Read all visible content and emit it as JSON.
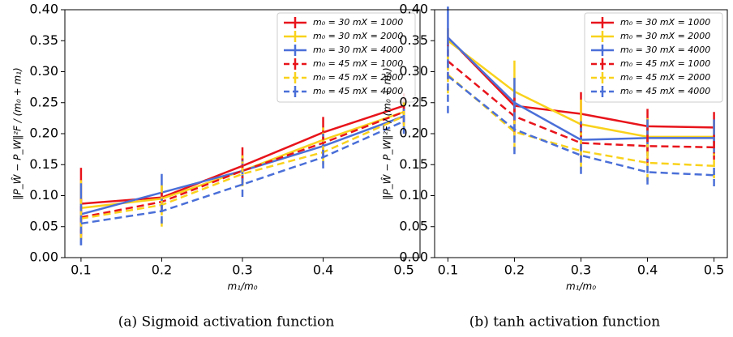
{
  "chart_data": [
    {
      "type": "line",
      "caption": "(a) Sigmoid activation function",
      "xlabel": "m₁/m₀",
      "ylabel": "‖P_Ŵ − P_W‖²F / (m₀ + m₁)",
      "x": [
        0.1,
        0.2,
        0.3,
        0.4,
        0.5
      ],
      "xlim": [
        0.08,
        0.52
      ],
      "xticks": [
        0.1,
        0.2,
        0.3,
        0.4,
        0.5
      ],
      "ylim": [
        0,
        0.4
      ],
      "yticks": [
        {
          "value": 0,
          "label": "0.00"
        },
        {
          "value": 0.05,
          "label": "0.05"
        },
        {
          "value": 0.1,
          "label": "0.10"
        },
        {
          "value": 0.15,
          "label": "0.15"
        },
        {
          "value": 0.2,
          "label": "0.20"
        },
        {
          "value": 0.25,
          "label": "0.25"
        },
        {
          "value": 0.3,
          "label": "0.30"
        },
        {
          "value": 0.35,
          "label": "0.35"
        },
        {
          "value": 0.4,
          "label": "0.40"
        }
      ],
      "legend": "upper right",
      "series": [
        {
          "name": "m₀ = 30  mX = 1000",
          "color": "#e8141b",
          "dashed": false,
          "values": [
            0.087,
            0.097,
            0.148,
            0.202,
            0.245
          ],
          "errors": [
            0.058,
            0.012,
            0.03,
            0.025,
            0.02
          ]
        },
        {
          "name": "m₀ = 30  mX = 2000",
          "color": "#f9d21c",
          "dashed": false,
          "values": [
            0.08,
            0.095,
            0.14,
            0.19,
            0.235
          ],
          "errors": [
            0.045,
            0.02,
            0.025,
            0.02,
            0.02
          ]
        },
        {
          "name": "m₀ = 30  mX = 4000",
          "color": "#4a6fd8",
          "dashed": false,
          "values": [
            0.07,
            0.105,
            0.14,
            0.18,
            0.228
          ],
          "errors": [
            0.05,
            0.03,
            0.02,
            0.02,
            0.02
          ]
        },
        {
          "name": "m₀ = 45  mX = 1000",
          "color": "#e8141b",
          "dashed": true,
          "values": [
            0.065,
            0.09,
            0.14,
            0.185,
            0.235
          ],
          "errors": [
            0.03,
            0.015,
            0.02,
            0.02,
            0.02
          ]
        },
        {
          "name": "m₀ = 45  mX = 2000",
          "color": "#f9d21c",
          "dashed": true,
          "values": [
            0.063,
            0.085,
            0.135,
            0.17,
            0.228
          ],
          "errors": [
            0.035,
            0.035,
            0.02,
            0.02,
            0.02
          ]
        },
        {
          "name": "m₀ = 45  mX = 4000",
          "color": "#4a6fd8",
          "dashed": true,
          "values": [
            0.055,
            0.075,
            0.118,
            0.162,
            0.22
          ],
          "errors": [
            0.035,
            0.02,
            0.02,
            0.018,
            0.02
          ]
        }
      ]
    },
    {
      "type": "line",
      "caption": "(b) tanh activation function",
      "xlabel": "m₁/m₀",
      "ylabel": "‖P_Ŵ − P_W‖²F / (m₀ + m₁)",
      "x": [
        0.1,
        0.2,
        0.3,
        0.4,
        0.5
      ],
      "xlim": [
        0.08,
        0.52
      ],
      "xticks": [
        0.1,
        0.2,
        0.3,
        0.4,
        0.5
      ],
      "ylim": [
        0,
        0.4
      ],
      "yticks": [
        {
          "value": 0,
          "label": "0.00"
        },
        {
          "value": 0.05,
          "label": "0.05"
        },
        {
          "value": 0.1,
          "label": "0.10"
        },
        {
          "value": 0.15,
          "label": "0.15"
        },
        {
          "value": 0.2,
          "label": "0.20"
        },
        {
          "value": 0.25,
          "label": "0.25"
        },
        {
          "value": 0.3,
          "label": "0.30"
        },
        {
          "value": 0.35,
          "label": "0.35"
        },
        {
          "value": 0.4,
          "label": "0.40"
        }
      ],
      "legend": "upper right",
      "series": [
        {
          "name": "m₀ = 30  mX = 1000",
          "color": "#e8141b",
          "dashed": false,
          "values": [
            0.355,
            0.245,
            0.232,
            0.212,
            0.21
          ],
          "errors": [
            0.015,
            0.02,
            0.035,
            0.028,
            0.025
          ]
        },
        {
          "name": "m₀ = 30  mX = 2000",
          "color": "#f9d21c",
          "dashed": false,
          "values": [
            0.35,
            0.268,
            0.215,
            0.195,
            0.195
          ],
          "errors": [
            0.02,
            0.05,
            0.04,
            0.03,
            0.025
          ]
        },
        {
          "name": "m₀ = 30  mX = 4000",
          "color": "#4a6fd8",
          "dashed": false,
          "values": [
            0.355,
            0.25,
            0.19,
            0.193,
            0.193
          ],
          "errors": [
            0.05,
            0.04,
            0.03,
            0.03,
            0.03
          ]
        },
        {
          "name": "m₀ = 45  mX = 1000",
          "color": "#e8141b",
          "dashed": true,
          "values": [
            0.317,
            0.228,
            0.185,
            0.18,
            0.178
          ],
          "errors": [
            0.03,
            0.03,
            0.03,
            0.03,
            0.02
          ]
        },
        {
          "name": "m₀ = 45  mX = 2000",
          "color": "#f9d21c",
          "dashed": true,
          "values": [
            0.295,
            0.203,
            0.172,
            0.153,
            0.148
          ],
          "errors": [
            0.03,
            0.03,
            0.03,
            0.03,
            0.02
          ]
        },
        {
          "name": "m₀ = 45  mX = 4000",
          "color": "#4a6fd8",
          "dashed": true,
          "values": [
            0.293,
            0.207,
            0.165,
            0.138,
            0.133
          ],
          "errors": [
            0.06,
            0.04,
            0.03,
            0.02,
            0.018
          ]
        }
      ]
    }
  ]
}
